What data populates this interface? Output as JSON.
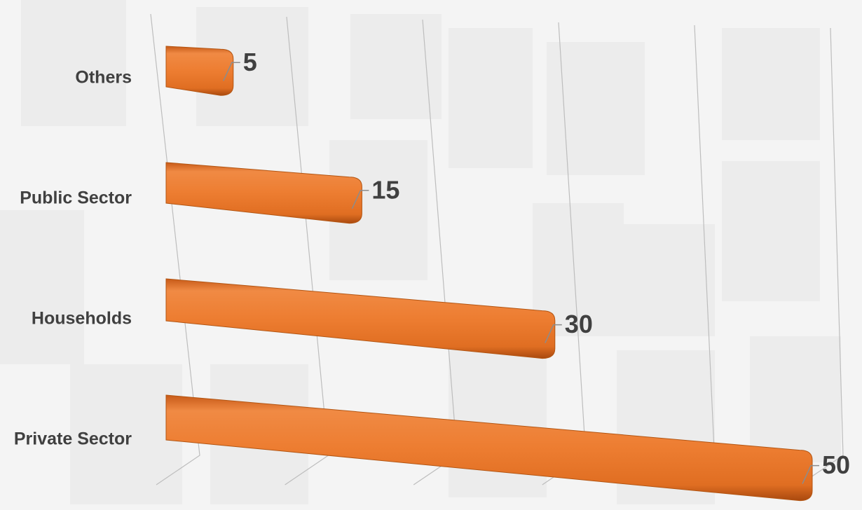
{
  "chart_data": {
    "type": "bar",
    "orientation": "horizontal",
    "categories": [
      "Others",
      "Public Sector",
      "Households",
      "Private Sector"
    ],
    "values": [
      5,
      15,
      30,
      50
    ],
    "color": "#ed7d31",
    "xlim": [
      0,
      50
    ],
    "xticks": [
      0,
      10,
      20,
      30,
      40,
      50
    ],
    "grid": true
  }
}
